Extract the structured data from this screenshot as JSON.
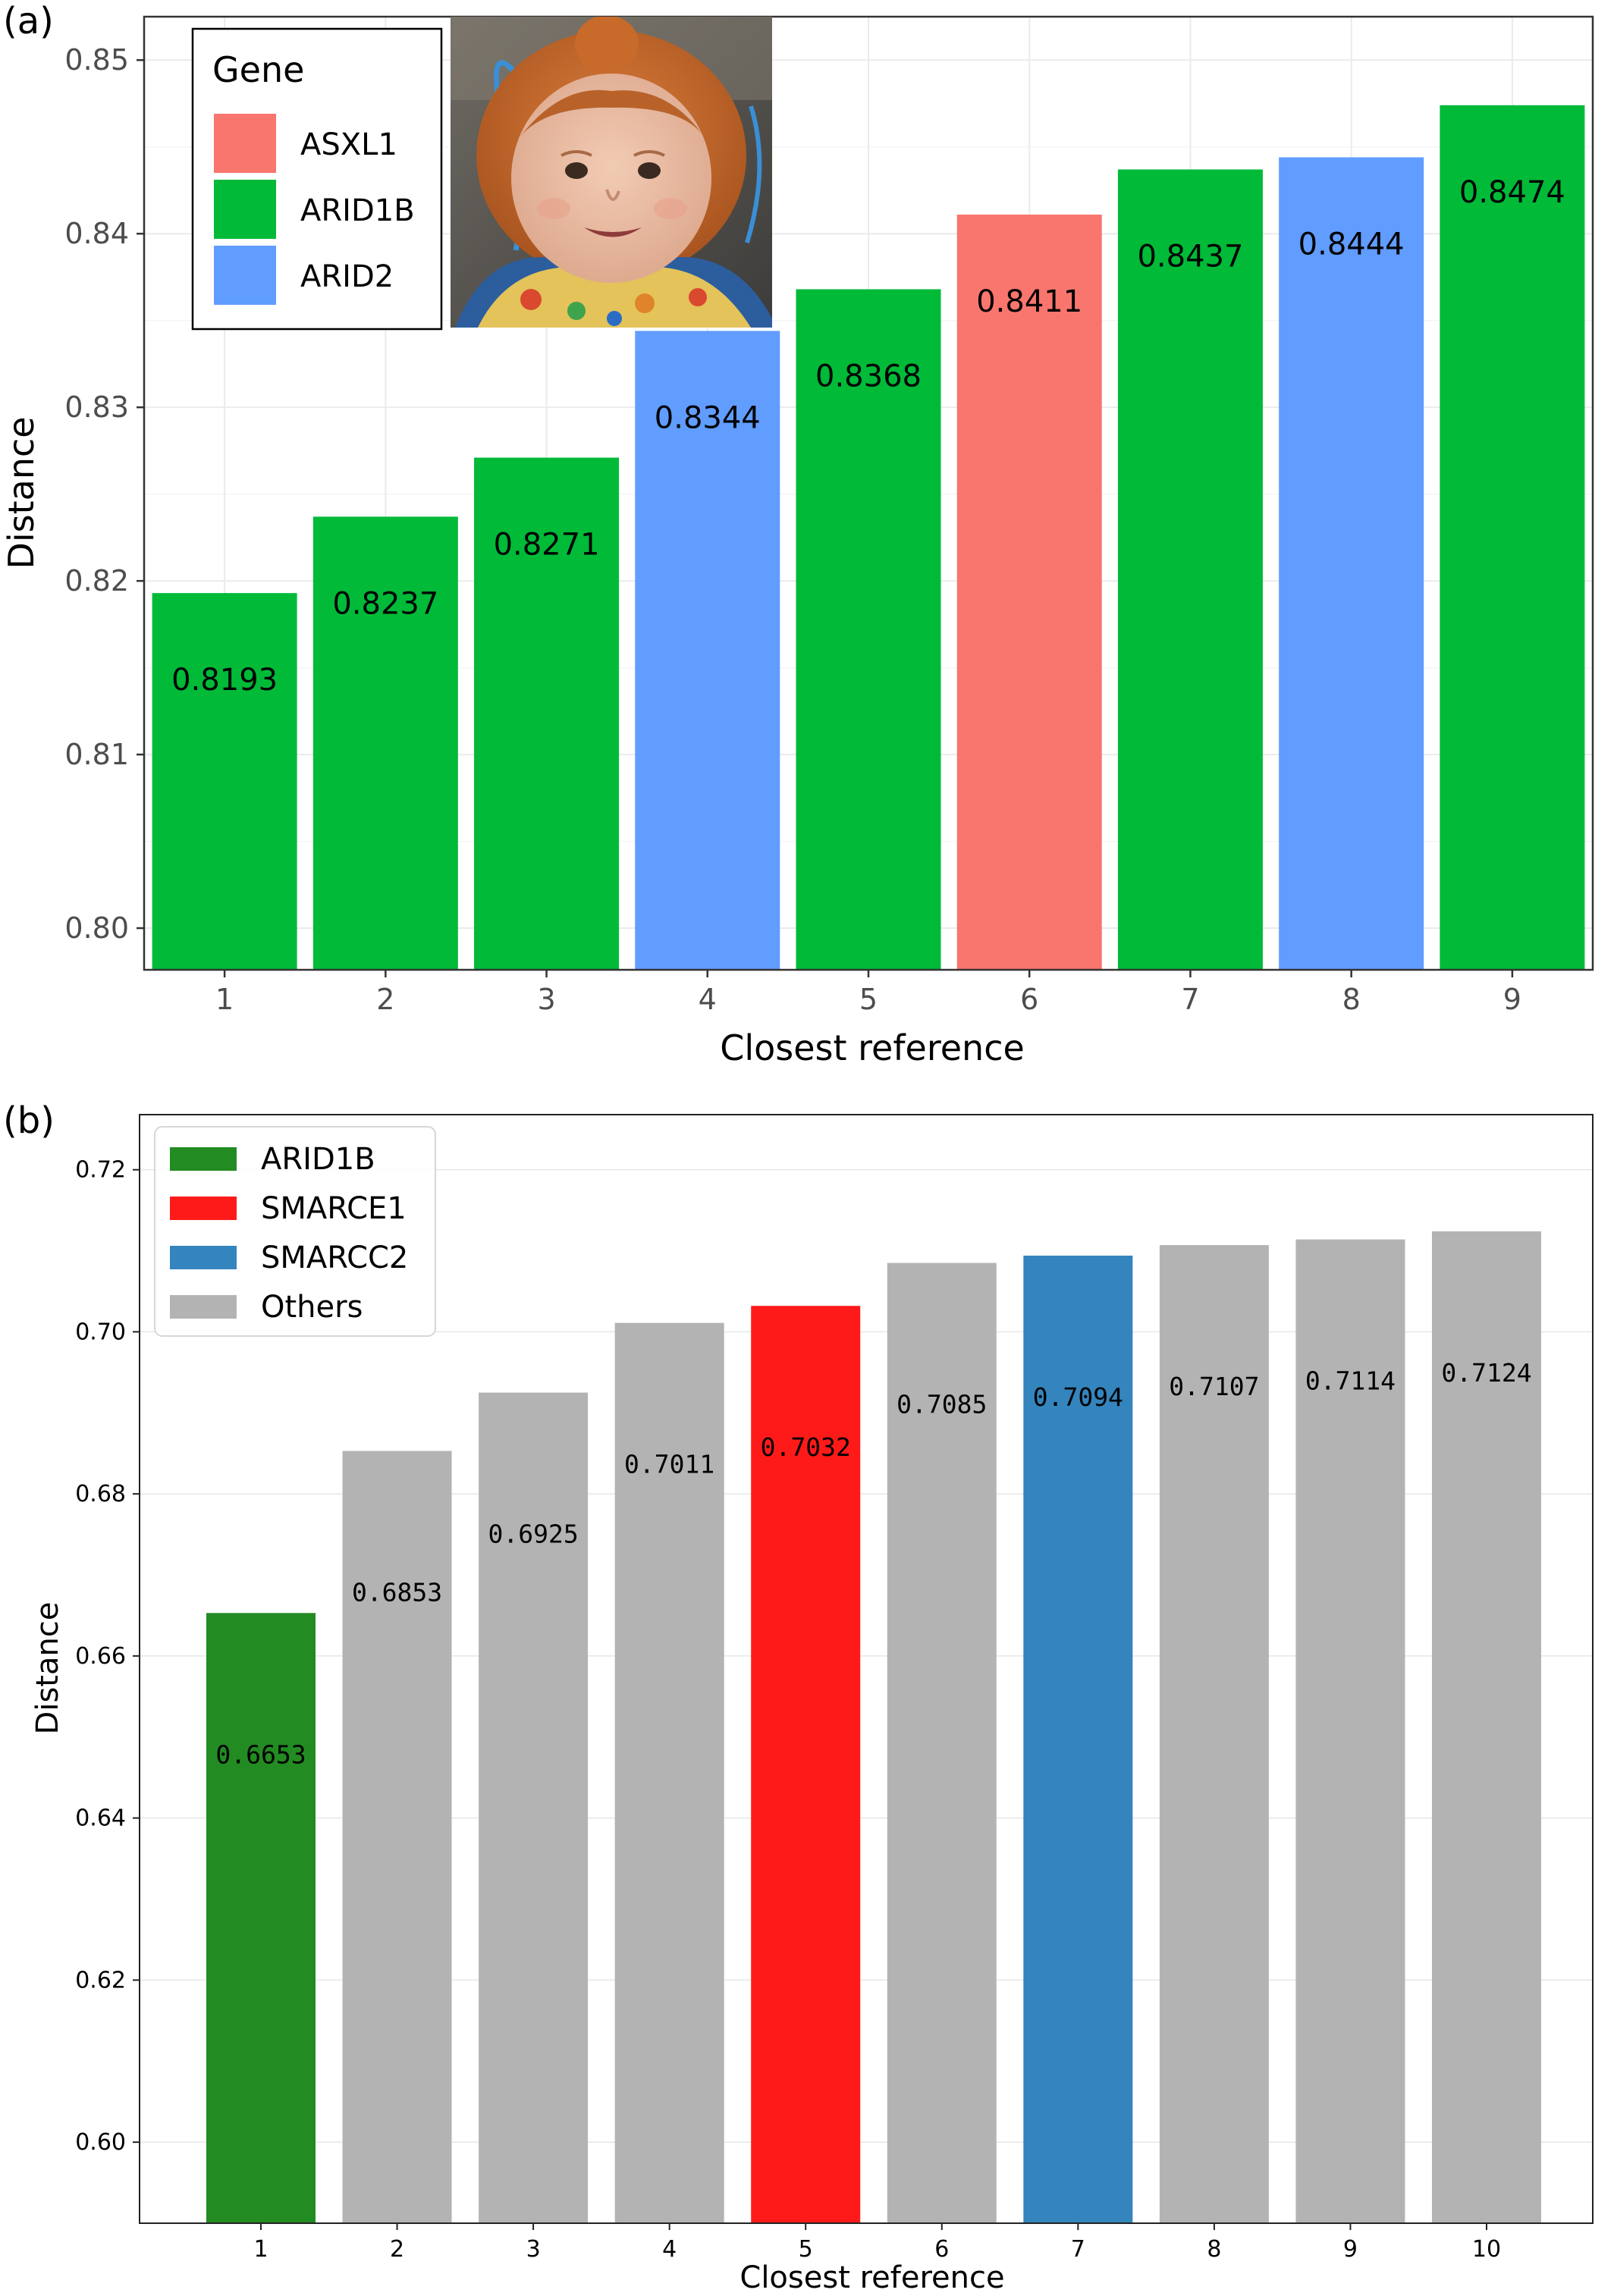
{
  "panels": [
    {
      "label": "(a)"
    },
    {
      "label": "(b)"
    }
  ],
  "photo": {
    "icon": "child-portrait-photo"
  },
  "chart_data": [
    {
      "type": "bar",
      "xlabel": "Closest reference",
      "ylabel": "Distance",
      "ylim": [
        0.7976,
        0.8525
      ],
      "yticks": [
        0.8,
        0.81,
        0.82,
        0.83,
        0.84,
        0.85
      ],
      "ytick_labels": [
        "0.80",
        "0.81",
        "0.82",
        "0.83",
        "0.84",
        "0.85"
      ],
      "categories": [
        "1",
        "2",
        "3",
        "4",
        "5",
        "6",
        "7",
        "8",
        "9"
      ],
      "values": [
        0.8193,
        0.8237,
        0.8271,
        0.8344,
        0.8368,
        0.8411,
        0.8437,
        0.8444,
        0.8474
      ],
      "value_labels": [
        "0.8193",
        "0.8237",
        "0.8271",
        "0.8344",
        "0.8368",
        "0.8411",
        "0.8437",
        "0.8444",
        "0.8474"
      ],
      "genes": [
        "ARID1B",
        "ARID1B",
        "ARID1B",
        "ARID2",
        "ARID1B",
        "ASXL1",
        "ARID1B",
        "ARID2",
        "ARID1B"
      ],
      "legend": {
        "title": "Gene",
        "position": "top-left",
        "entries": [
          {
            "name": "ASXL1",
            "color": "#f8766d"
          },
          {
            "name": "ARID1B",
            "color": "#00ba38"
          },
          {
            "name": "ARID2",
            "color": "#619cff"
          }
        ]
      },
      "grid": true
    },
    {
      "type": "bar",
      "xlabel": "Closest reference",
      "ylabel": "Distance",
      "ylim": [
        0.59,
        0.7268
      ],
      "yticks": [
        0.6,
        0.62,
        0.64,
        0.66,
        0.68,
        0.7,
        0.72
      ],
      "ytick_labels": [
        "0.60",
        "0.62",
        "0.64",
        "0.66",
        "0.68",
        "0.70",
        "0.72"
      ],
      "categories": [
        "1",
        "2",
        "3",
        "4",
        "5",
        "6",
        "7",
        "8",
        "9",
        "10"
      ],
      "values": [
        0.6653,
        0.6853,
        0.6925,
        0.7011,
        0.7032,
        0.7085,
        0.7094,
        0.7107,
        0.7114,
        0.7124
      ],
      "value_labels": [
        "0.6653",
        "0.6853",
        "0.6925",
        "0.7011",
        "0.7032",
        "0.7085",
        "0.7094",
        "0.7107",
        "0.7114",
        "0.7124"
      ],
      "groups": [
        "ARID1B",
        "Others",
        "Others",
        "Others",
        "SMARCE1",
        "Others",
        "SMARCC2",
        "Others",
        "Others",
        "Others"
      ],
      "legend": {
        "position": "top-left",
        "entries": [
          {
            "name": "ARID1B",
            "color": "#228b22"
          },
          {
            "name": "SMARCE1",
            "color": "#ff1a1a"
          },
          {
            "name": "SMARCC2",
            "color": "#3484bd"
          },
          {
            "name": "Others",
            "color": "#b3b3b3"
          }
        ]
      },
      "grid": true
    }
  ]
}
